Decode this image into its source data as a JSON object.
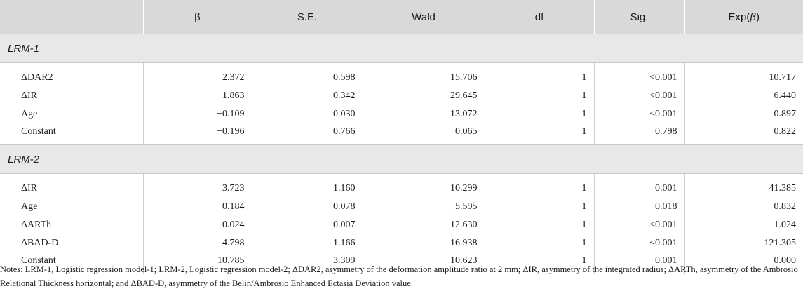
{
  "header": [
    "",
    "β",
    "S.E.",
    "Wald",
    "df",
    "Sig.",
    "Exp(β)"
  ],
  "sections": [
    {
      "label": "LRM-1",
      "rows": [
        [
          "ΔDAR2",
          "2.372",
          "0.598",
          "15.706",
          "1",
          "<0.001",
          "10.717"
        ],
        [
          "ΔIR",
          "1.863",
          "0.342",
          "29.645",
          "1",
          "<0.001",
          "6.440"
        ],
        [
          "Age",
          "−0.109",
          "0.030",
          "13.072",
          "1",
          "<0.001",
          "0.897"
        ],
        [
          "Constant",
          "−0.196",
          "0.766",
          "0.065",
          "1",
          "0.798",
          "0.822"
        ]
      ]
    },
    {
      "label": "LRM-2",
      "rows": [
        [
          "ΔIR",
          "3.723",
          "1.160",
          "10.299",
          "1",
          "0.001",
          "41.385"
        ],
        [
          "Age",
          "−0.184",
          "0.078",
          "5.595",
          "1",
          "0.018",
          "0.832"
        ],
        [
          "ΔARTh",
          "0.024",
          "0.007",
          "12.630",
          "1",
          "<0.001",
          "1.024"
        ],
        [
          "ΔBAD-D",
          "4.798",
          "1.166",
          "16.938",
          "1",
          "<0.001",
          "121.305"
        ],
        [
          "Constant",
          "−10.785",
          "3.309",
          "10.623",
          "1",
          "0.001",
          "0.000"
        ]
      ]
    }
  ],
  "notes": "Notes: LRM-1, Logistic regression model-1; LRM-2, Logistic regression model-2; ΔDAR2, asymmetry of the deformation amplitude ratio at 2 mm; ΔIR, asymmetry of the integrated radius; ΔARTh, asymmetry of the Ambrosio Relational Thickness horizontal; and ΔBAD-D, asymmetry of the Belin/Ambrosio Enhanced Ectasia Deviation value."
}
